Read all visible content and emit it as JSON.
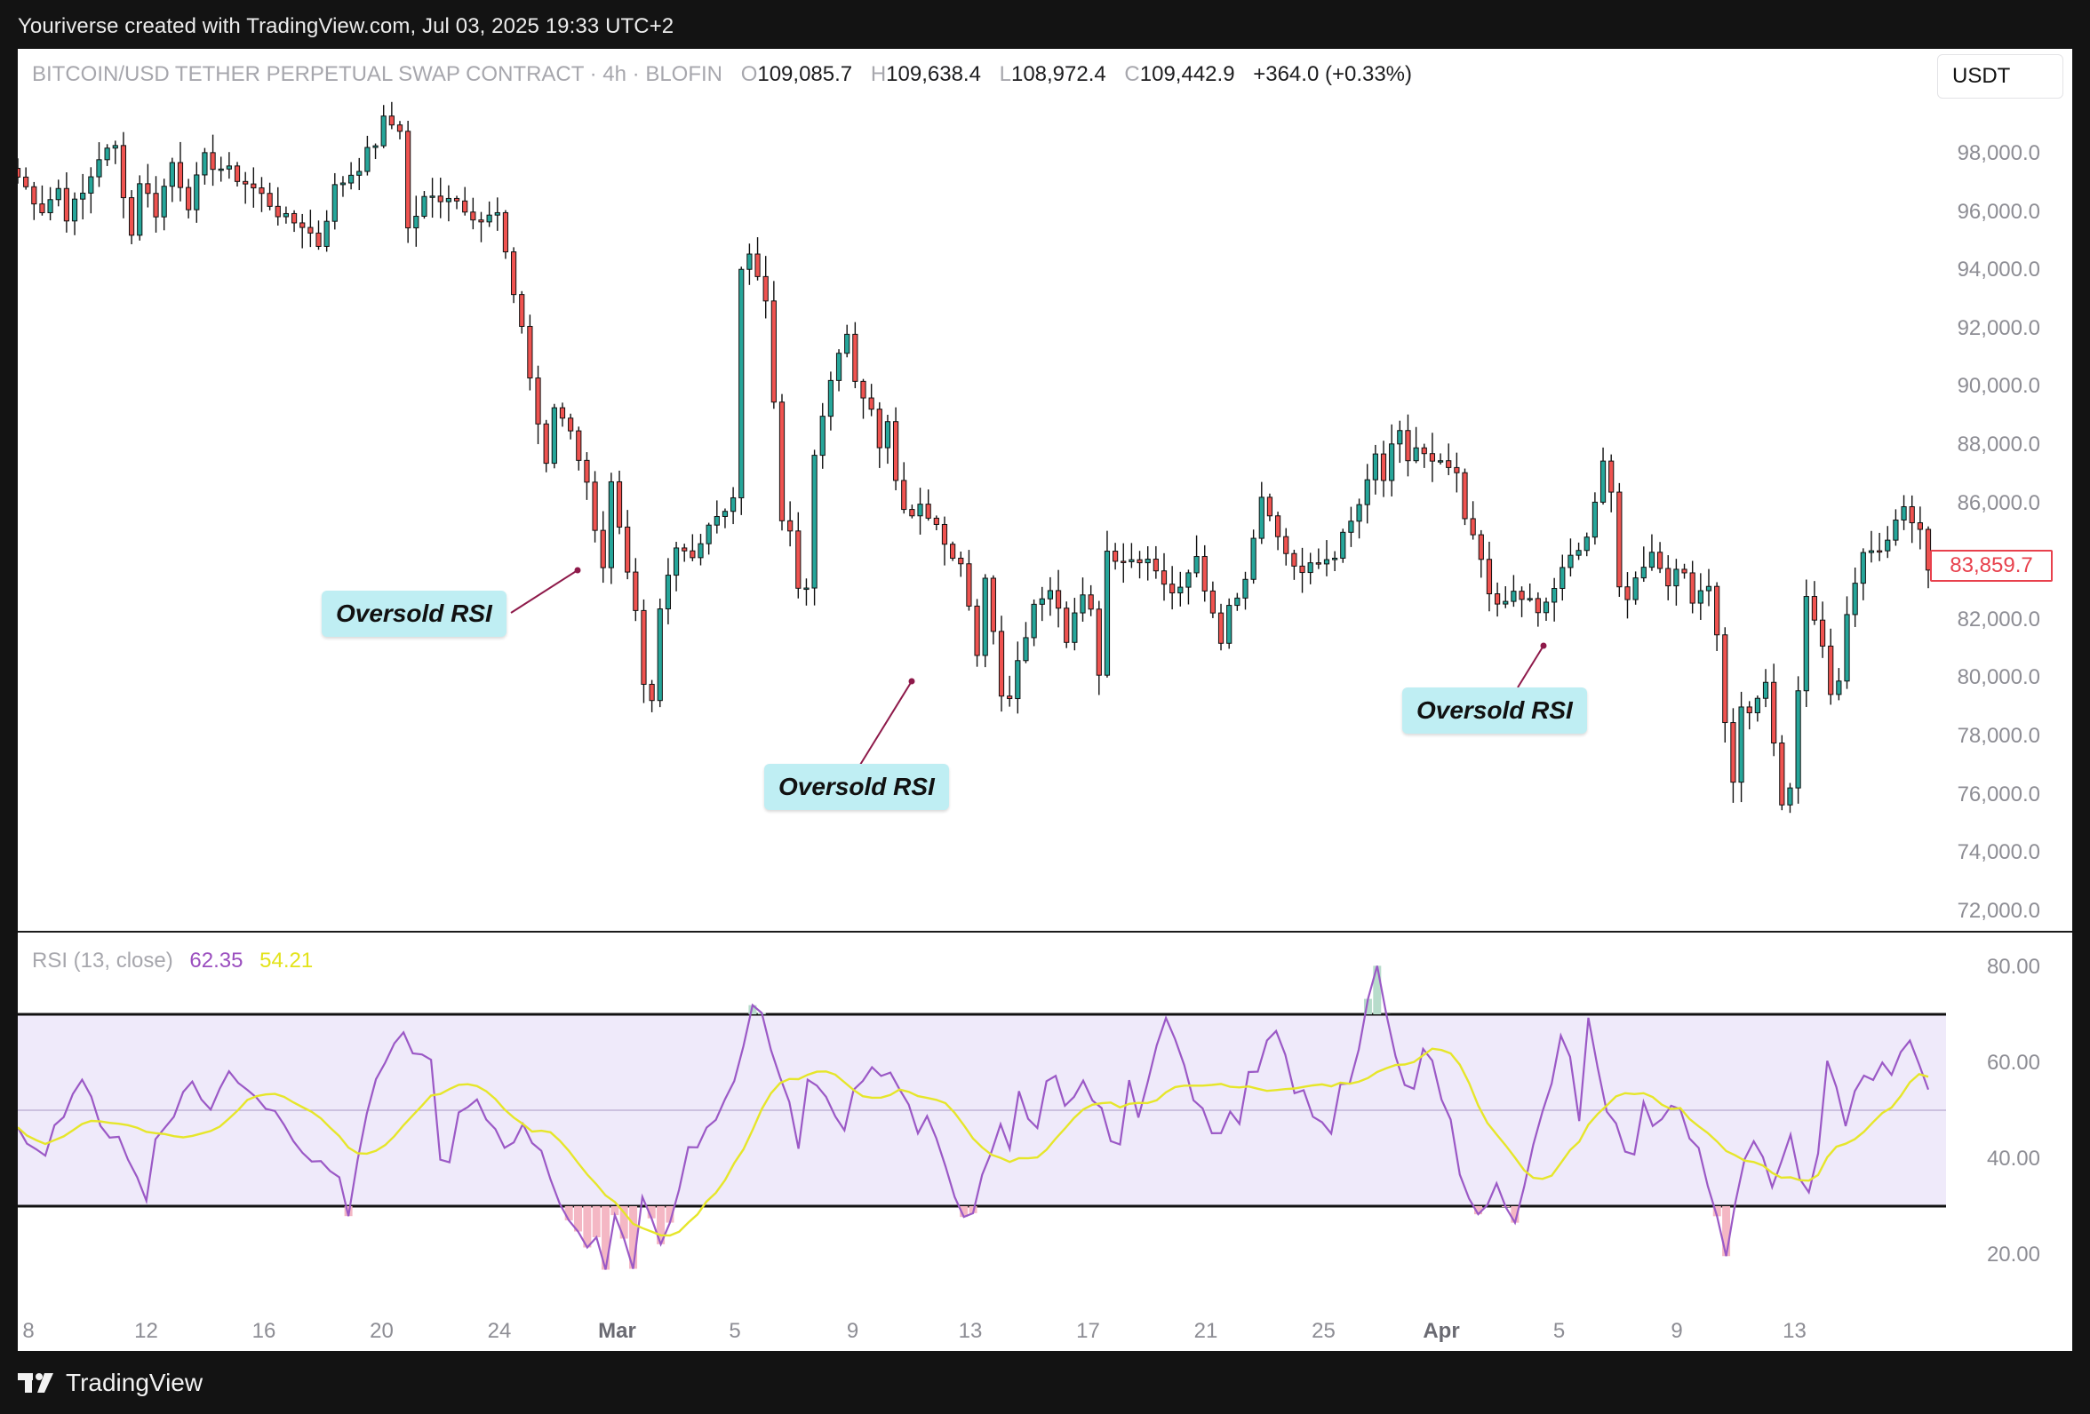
{
  "header": {
    "caption": "Youriverse created with TradingView.com, Jul 03, 2025 19:33 UTC+2"
  },
  "symbol": {
    "name": "BITCOIN/USD TETHER PERPETUAL SWAP CONTRACT · 4h · BLOFIN",
    "open_label": "O",
    "open": "109,085.7",
    "high_label": "H",
    "high": "109,638.4",
    "low_label": "L",
    "low": "108,972.4",
    "close_label": "C",
    "close": "109,442.9",
    "change": "+364.0 (+0.33%)"
  },
  "currency_button": "USDT",
  "last_price_label": "83,859.7",
  "price_axis": [
    "98,000.0",
    "96,000.0",
    "94,000.0",
    "92,000.0",
    "90,000.0",
    "88,000.0",
    "86,000.0",
    "84,000.0",
    "82,000.0",
    "80,000.0",
    "78,000.0",
    "76,000.0",
    "74,000.0",
    "72,000.0"
  ],
  "rsi": {
    "label": "RSI (13, close)",
    "value": "62.35",
    "ma_value": "54.21",
    "axis": [
      "80.00",
      "60.00",
      "40.00",
      "20.00"
    ]
  },
  "time_axis": [
    {
      "label": "8",
      "bold": false
    },
    {
      "label": "12",
      "bold": false
    },
    {
      "label": "16",
      "bold": false
    },
    {
      "label": "20",
      "bold": false
    },
    {
      "label": "24",
      "bold": false
    },
    {
      "label": "Mar",
      "bold": true
    },
    {
      "label": "5",
      "bold": false
    },
    {
      "label": "9",
      "bold": false
    },
    {
      "label": "13",
      "bold": false
    },
    {
      "label": "17",
      "bold": false
    },
    {
      "label": "21",
      "bold": false
    },
    {
      "label": "25",
      "bold": false
    },
    {
      "label": "Apr",
      "bold": true
    },
    {
      "label": "5",
      "bold": false
    },
    {
      "label": "9",
      "bold": false
    },
    {
      "label": "13",
      "bold": false
    }
  ],
  "annotations": [
    "Oversold RSI",
    "Oversold RSI",
    "Oversold RSI"
  ],
  "brand": "TradingView",
  "colors": {
    "up": "#26a69a",
    "down": "#ef5350",
    "rsi_line": "#9b59c6",
    "rsi_ma": "#e6e62a",
    "rsi_band": "#efeafa",
    "callout_bg": "#bfeef3",
    "last_price": "#e8414d"
  },
  "chart_data": {
    "type": "candlestick",
    "timeframe": "4h",
    "price_range": [
      72000,
      99500
    ],
    "price_path": [
      [
        0,
        97200
      ],
      [
        3,
        96100
      ],
      [
        5,
        96800
      ],
      [
        6,
        95900
      ],
      [
        8,
        96600
      ],
      [
        10,
        97900
      ],
      [
        12,
        98200
      ],
      [
        14,
        95200
      ],
      [
        15,
        97100
      ],
      [
        17,
        96000
      ],
      [
        19,
        97700
      ],
      [
        21,
        96300
      ],
      [
        23,
        97800
      ],
      [
        25,
        97500
      ],
      [
        27,
        97200
      ],
      [
        29,
        96800
      ],
      [
        31,
        96300
      ],
      [
        33,
        95700
      ],
      [
        35,
        95600
      ],
      [
        37,
        94900
      ],
      [
        39,
        96800
      ],
      [
        42,
        97600
      ],
      [
        44,
        98400
      ],
      [
        45,
        99100
      ],
      [
        47,
        98900
      ],
      [
        48,
        95400
      ],
      [
        50,
        96400
      ],
      [
        53,
        96600
      ],
      [
        55,
        96200
      ],
      [
        57,
        95700
      ],
      [
        59,
        95900
      ],
      [
        60,
        94400
      ],
      [
        62,
        92100
      ],
      [
        63,
        90300
      ],
      [
        65,
        87200
      ],
      [
        66,
        89300
      ],
      [
        68,
        88600
      ],
      [
        70,
        86600
      ],
      [
        72,
        83900
      ],
      [
        73,
        86600
      ],
      [
        75,
        83400
      ],
      [
        76,
        82100
      ],
      [
        77,
        79600
      ],
      [
        78,
        79100
      ],
      [
        79,
        82300
      ],
      [
        81,
        84700
      ],
      [
        83,
        84200
      ],
      [
        85,
        85300
      ],
      [
        87,
        85600
      ],
      [
        88,
        86300
      ],
      [
        89,
        93800
      ],
      [
        90,
        94800
      ],
      [
        92,
        92900
      ],
      [
        93,
        89500
      ],
      [
        94,
        85600
      ],
      [
        95,
        84800
      ],
      [
        96,
        83100
      ],
      [
        97,
        82900
      ],
      [
        98,
        87600
      ],
      [
        100,
        90400
      ],
      [
        102,
        91600
      ],
      [
        103,
        90300
      ],
      [
        105,
        89400
      ],
      [
        106,
        87800
      ],
      [
        107,
        88700
      ],
      [
        108,
        86700
      ],
      [
        109,
        85600
      ],
      [
        111,
        85800
      ],
      [
        113,
        85500
      ],
      [
        114,
        84800
      ],
      [
        116,
        83900
      ],
      [
        117,
        82300
      ],
      [
        118,
        80600
      ],
      [
        119,
        83600
      ],
      [
        120,
        81600
      ],
      [
        121,
        79600
      ],
      [
        122,
        79400
      ],
      [
        123,
        80600
      ],
      [
        125,
        82600
      ],
      [
        127,
        83100
      ],
      [
        129,
        81400
      ],
      [
        130,
        82400
      ],
      [
        131,
        83100
      ],
      [
        132,
        82300
      ],
      [
        133,
        80300
      ],
      [
        134,
        84400
      ],
      [
        136,
        84000
      ],
      [
        138,
        84200
      ],
      [
        140,
        83700
      ],
      [
        141,
        83100
      ],
      [
        143,
        82900
      ],
      [
        145,
        84100
      ],
      [
        146,
        83100
      ],
      [
        147,
        82300
      ],
      [
        148,
        81400
      ],
      [
        149,
        82300
      ],
      [
        151,
        83600
      ],
      [
        153,
        86300
      ],
      [
        154,
        85800
      ],
      [
        155,
        84800
      ],
      [
        156,
        84300
      ],
      [
        157,
        83900
      ],
      [
        158,
        83600
      ],
      [
        160,
        83900
      ],
      [
        162,
        84300
      ],
      [
        164,
        85300
      ],
      [
        166,
        86600
      ],
      [
        167,
        87600
      ],
      [
        168,
        86800
      ],
      [
        169,
        87800
      ],
      [
        170,
        88300
      ],
      [
        171,
        87500
      ],
      [
        172,
        87900
      ],
      [
        174,
        87300
      ],
      [
        176,
        87200
      ],
      [
        177,
        86800
      ],
      [
        178,
        85400
      ],
      [
        180,
        84100
      ],
      [
        181,
        83100
      ],
      [
        182,
        82300
      ],
      [
        183,
        82600
      ],
      [
        184,
        82900
      ],
      [
        186,
        82600
      ],
      [
        187,
        82100
      ],
      [
        188,
        82600
      ],
      [
        190,
        83600
      ],
      [
        192,
        84600
      ],
      [
        193,
        84900
      ],
      [
        195,
        87200
      ],
      [
        196,
        86300
      ],
      [
        197,
        83300
      ],
      [
        198,
        82600
      ],
      [
        199,
        83600
      ],
      [
        201,
        84300
      ],
      [
        203,
        83400
      ],
      [
        205,
        83600
      ],
      [
        206,
        82800
      ],
      [
        208,
        83300
      ],
      [
        209,
        81400
      ],
      [
        210,
        78600
      ],
      [
        211,
        76300
      ],
      [
        212,
        79100
      ],
      [
        213,
        78600
      ],
      [
        215,
        79900
      ],
      [
        216,
        77600
      ],
      [
        217,
        75800
      ],
      [
        218,
        76300
      ],
      [
        219,
        79600
      ],
      [
        220,
        82600
      ],
      [
        222,
        81300
      ],
      [
        223,
        79600
      ],
      [
        224,
        79900
      ],
      [
        225,
        82300
      ],
      [
        227,
        84300
      ],
      [
        229,
        84600
      ],
      [
        231,
        85300
      ],
      [
        232,
        85900
      ],
      [
        233,
        85300
      ],
      [
        234,
        84900
      ],
      [
        235,
        83900
      ]
    ],
    "rsi_path": [
      [
        0,
        45
      ],
      [
        3,
        42
      ],
      [
        5,
        50
      ],
      [
        7,
        57
      ],
      [
        9,
        46
      ],
      [
        11,
        45
      ],
      [
        14,
        31
      ],
      [
        15,
        44
      ],
      [
        17,
        50
      ],
      [
        19,
        56
      ],
      [
        21,
        50
      ],
      [
        23,
        58
      ],
      [
        25,
        55
      ],
      [
        27,
        51
      ],
      [
        29,
        48
      ],
      [
        31,
        42
      ],
      [
        33,
        38
      ],
      [
        35,
        37
      ],
      [
        36,
        28
      ],
      [
        38,
        50
      ],
      [
        40,
        60
      ],
      [
        42,
        65
      ],
      [
        44,
        61
      ],
      [
        45,
        60
      ],
      [
        46,
        41
      ],
      [
        47,
        38
      ],
      [
        48,
        49
      ],
      [
        50,
        51
      ],
      [
        52,
        46
      ],
      [
        53,
        43
      ],
      [
        55,
        46
      ],
      [
        57,
        42
      ],
      [
        59,
        31
      ],
      [
        60,
        27
      ],
      [
        62,
        20
      ],
      [
        63,
        25
      ],
      [
        64,
        17
      ],
      [
        65,
        28
      ],
      [
        66,
        24
      ],
      [
        67,
        18
      ],
      [
        68,
        32
      ],
      [
        69,
        27
      ],
      [
        70,
        22
      ],
      [
        72,
        33
      ],
      [
        73,
        41
      ],
      [
        75,
        46
      ],
      [
        76,
        47
      ],
      [
        77,
        52
      ],
      [
        79,
        63
      ],
      [
        80,
        73
      ],
      [
        81,
        71
      ],
      [
        82,
        62
      ],
      [
        83,
        58
      ],
      [
        84,
        51
      ],
      [
        85,
        42
      ],
      [
        86,
        55
      ],
      [
        88,
        53
      ],
      [
        89,
        50
      ],
      [
        90,
        47
      ],
      [
        91,
        53
      ],
      [
        92,
        55
      ],
      [
        93,
        58
      ],
      [
        95,
        57
      ],
      [
        97,
        52
      ],
      [
        98,
        46
      ],
      [
        99,
        49
      ],
      [
        100,
        43
      ],
      [
        101,
        38
      ],
      [
        102,
        33
      ],
      [
        103,
        27
      ],
      [
        104,
        29
      ],
      [
        105,
        38
      ],
      [
        106,
        42
      ],
      [
        107,
        46
      ],
      [
        108,
        42
      ],
      [
        109,
        53
      ],
      [
        110,
        48
      ],
      [
        111,
        45
      ],
      [
        112,
        55
      ],
      [
        113,
        56
      ],
      [
        114,
        50
      ],
      [
        115,
        52
      ],
      [
        116,
        57
      ],
      [
        117,
        52
      ],
      [
        118,
        49
      ],
      [
        119,
        45
      ],
      [
        120,
        43
      ],
      [
        121,
        55
      ],
      [
        122,
        48
      ],
      [
        123,
        57
      ],
      [
        124,
        65
      ],
      [
        125,
        69
      ],
      [
        126,
        64
      ],
      [
        127,
        59
      ],
      [
        128,
        53
      ],
      [
        129,
        49
      ],
      [
        130,
        46
      ],
      [
        131,
        44
      ],
      [
        132,
        51
      ],
      [
        133,
        48
      ],
      [
        134,
        59
      ],
      [
        135,
        58
      ],
      [
        136,
        66
      ],
      [
        137,
        67
      ],
      [
        138,
        61
      ],
      [
        139,
        55
      ],
      [
        140,
        53
      ],
      [
        141,
        50
      ],
      [
        142,
        47
      ],
      [
        143,
        46
      ],
      [
        144,
        54
      ],
      [
        145,
        56
      ],
      [
        146,
        62
      ],
      [
        147,
        72
      ],
      [
        148,
        80
      ],
      [
        149,
        69
      ],
      [
        150,
        62
      ],
      [
        151,
        55
      ],
      [
        152,
        53
      ],
      [
        153,
        63
      ],
      [
        154,
        59
      ],
      [
        155,
        52
      ],
      [
        156,
        47
      ],
      [
        157,
        38
      ],
      [
        158,
        33
      ],
      [
        159,
        27
      ],
      [
        160,
        31
      ],
      [
        161,
        34
      ],
      [
        162,
        31
      ],
      [
        163,
        28
      ],
      [
        164,
        35
      ],
      [
        165,
        42
      ],
      [
        166,
        49
      ],
      [
        167,
        55
      ],
      [
        168,
        66
      ],
      [
        169,
        60
      ],
      [
        170,
        47
      ],
      [
        171,
        70
      ],
      [
        172,
        58
      ],
      [
        173,
        49
      ],
      [
        174,
        46
      ],
      [
        175,
        40
      ],
      [
        176,
        42
      ],
      [
        177,
        51
      ],
      [
        178,
        46
      ],
      [
        179,
        49
      ],
      [
        180,
        52
      ],
      [
        181,
        50
      ],
      [
        182,
        44
      ],
      [
        183,
        42
      ],
      [
        184,
        33
      ],
      [
        185,
        28
      ],
      [
        186,
        20
      ],
      [
        187,
        32
      ],
      [
        188,
        40
      ],
      [
        189,
        45
      ],
      [
        190,
        40
      ],
      [
        191,
        33
      ],
      [
        192,
        38
      ],
      [
        193,
        44
      ],
      [
        194,
        37
      ],
      [
        195,
        33
      ],
      [
        196,
        42
      ],
      [
        197,
        60
      ],
      [
        198,
        56
      ],
      [
        199,
        48
      ],
      [
        200,
        53
      ],
      [
        201,
        58
      ],
      [
        202,
        55
      ],
      [
        203,
        61
      ],
      [
        204,
        58
      ],
      [
        205,
        63
      ],
      [
        206,
        66
      ],
      [
        207,
        59
      ],
      [
        208,
        55
      ]
    ],
    "rsi_range": [
      12,
      82
    ],
    "rsi_bands": [
      30,
      70
    ],
    "rsi_mid": 50
  }
}
